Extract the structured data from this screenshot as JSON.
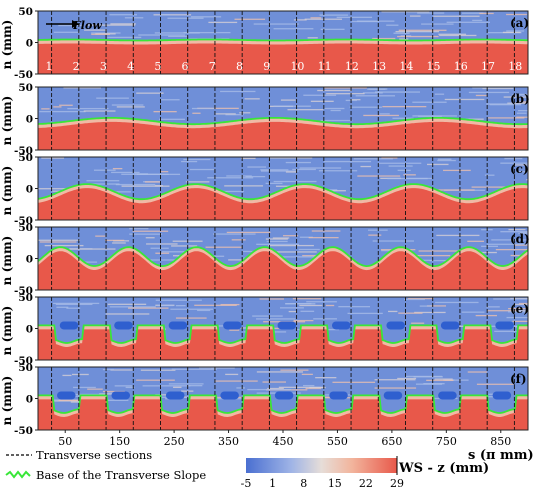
{
  "chart_data": {
    "type": "heatmap",
    "title": "",
    "xlabel": "s (π mm)",
    "ylabel": "n (mm)",
    "xlim": [
      0,
      900
    ],
    "ylim": [
      -50,
      50
    ],
    "x_ticks": [
      50,
      150,
      250,
      350,
      450,
      550,
      650,
      750,
      850
    ],
    "y_ticks": [
      50,
      0,
      -50
    ],
    "flow_label": "Flow",
    "section_numbers": [
      "1",
      "2",
      "3",
      "4",
      "5",
      "6",
      "7",
      "8",
      "9",
      "10",
      "11",
      "12",
      "13",
      "14",
      "15",
      "16",
      "17",
      "18"
    ],
    "section_positions": [
      10,
      60,
      110,
      160,
      210,
      260,
      310,
      360,
      410,
      460,
      510,
      560,
      610,
      660,
      710,
      760,
      810,
      860
    ],
    "panels": [
      {
        "label": "(a)",
        "base_type": "flat",
        "amplitude": 0,
        "period": 900,
        "phase": 0,
        "mean": 0
      },
      {
        "label": "(b)",
        "base_type": "wave",
        "amplitude": 5,
        "period": 300,
        "phase": 60,
        "mean": -4
      },
      {
        "label": "(c)",
        "base_type": "wave",
        "amplitude": 12,
        "period": 200,
        "phase": 40,
        "mean": -5
      },
      {
        "label": "(d)",
        "base_type": "wave",
        "amplitude": 15,
        "period": 125,
        "phase": 10,
        "mean": 3
      },
      {
        "label": "(e)",
        "base_type": "pockets",
        "amplitude": 20,
        "period": 100,
        "phase": 10,
        "mean": 0
      },
      {
        "label": "(f)",
        "base_type": "pockets",
        "amplitude": 20,
        "period": 100,
        "phase": 5,
        "mean": 0
      }
    ],
    "colorbar": {
      "label": "WS - z (mm)",
      "ticks": [
        "-5",
        "1",
        "8",
        "15",
        "22",
        "29"
      ],
      "tick_values": [
        -5,
        1,
        8,
        15,
        22,
        29
      ],
      "range": [
        -5,
        29
      ],
      "colors": [
        "#4a6fd1",
        "#9fb4e6",
        "#e6ddd8",
        "#f2b59d",
        "#e8584a"
      ]
    },
    "legend": [
      {
        "label": "Transverse sections",
        "style": "dashed",
        "color": "#000000"
      },
      {
        "label": "Base of the Transverse Slope",
        "style": "solid",
        "color": "#39e639"
      }
    ]
  }
}
